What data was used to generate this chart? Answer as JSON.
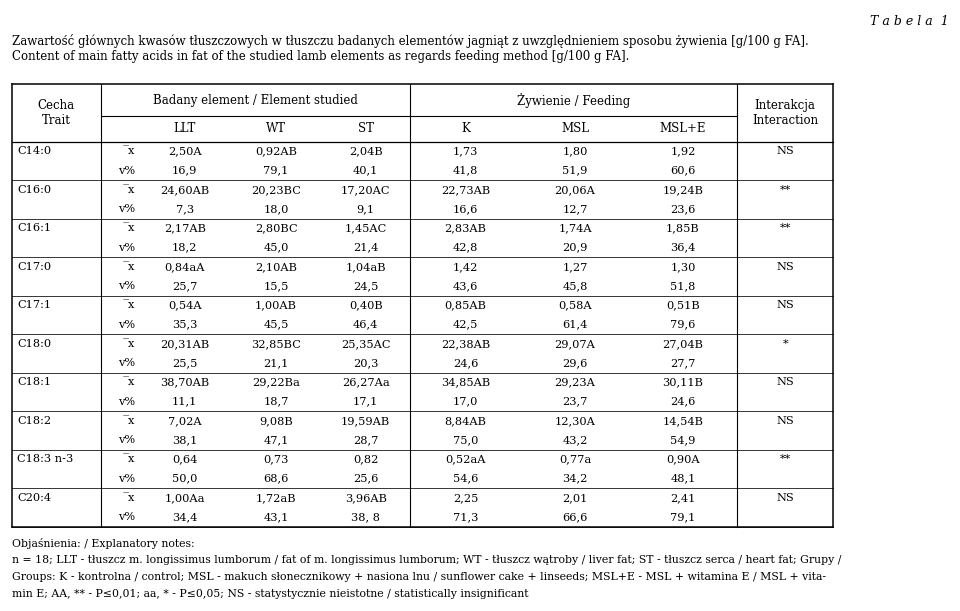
{
  "title_right": "T a b e l a  1",
  "title_line1": "Zawartość głównych kwasów tłuszczowych w tłuszczu badanych elementów jagniąt z uwzględnieniem sposobu żywienia [g/100 g FA].",
  "title_line2": "Content of main fatty acids in fat of the studied lamb elements as regards feeding method [g/100 g FA].",
  "footnote_line1": "Objaśnienia: / Explanatory notes:",
  "footnote_line2": "n = 18; LLT - tłuszcz m. longissimus lumborum / fat of m. longissimus lumborum; WT - tłuszcz wątroby / liver fat; ST - tłuszcz serca / heart fat; Grupy /",
  "footnote_line3": "Groups: K - kontrolna / control; MSL - makuch słonecznikowy + nasiona lnu / sunflower cake + linseeds; MSL+E - MSL + witamina E / MSL + vita-",
  "footnote_line4": "min E; AA, ** - P≤0,01; aa, * - P≤0,05; NS - statystycznie nieistotne / statistically insignificant",
  "rows": [
    [
      "C14:0",
      "̅x",
      "2,50A",
      "0,92AB",
      "2,04B",
      "1,73",
      "1,80",
      "1,92",
      "NS"
    ],
    [
      "",
      "v%",
      "16,9",
      "79,1",
      "40,1",
      "41,8",
      "51,9",
      "60,6",
      ""
    ],
    [
      "C16:0",
      "̅x",
      "24,60AB",
      "20,23BC",
      "17,20AC",
      "22,73AB",
      "20,06A",
      "19,24B",
      "**"
    ],
    [
      "",
      "v%",
      "7,3",
      "18,0",
      "9,1",
      "16,6",
      "12,7",
      "23,6",
      ""
    ],
    [
      "C16:1",
      "̅x",
      "2,17AB",
      "2,80BC",
      "1,45AC",
      "2,83AB",
      "1,74A",
      "1,85B",
      "**"
    ],
    [
      "",
      "v%",
      "18,2",
      "45,0",
      "21,4",
      "42,8",
      "20,9",
      "36,4",
      ""
    ],
    [
      "C17:0",
      "̅x",
      "0,84aA",
      "2,10AB",
      "1,04aB",
      "1,42",
      "1,27",
      "1,30",
      "NS"
    ],
    [
      "",
      "v%",
      "25,7",
      "15,5",
      "24,5",
      "43,6",
      "45,8",
      "51,8",
      ""
    ],
    [
      "C17:1",
      "̅x",
      "0,54A",
      "1,00AB",
      "0,40B",
      "0,85AB",
      "0,58A",
      "0,51B",
      "NS"
    ],
    [
      "",
      "v%",
      "35,3",
      "45,5",
      "46,4",
      "42,5",
      "61,4",
      "79,6",
      ""
    ],
    [
      "C18:0",
      "̅x",
      "20,31AB",
      "32,85BC",
      "25,35AC",
      "22,38AB",
      "29,07A",
      "27,04B",
      "*"
    ],
    [
      "",
      "v%",
      "25,5",
      "21,1",
      "20,3",
      "24,6",
      "29,6",
      "27,7",
      ""
    ],
    [
      "C18:1",
      "̅x",
      "38,70AB",
      "29,22Ba",
      "26,27Aa",
      "34,85AB",
      "29,23A",
      "30,11B",
      "NS"
    ],
    [
      "",
      "v%",
      "11,1",
      "18,7",
      "17,1",
      "17,0",
      "23,7",
      "24,6",
      ""
    ],
    [
      "C18:2",
      "̅x",
      "7,02A",
      "9,08B",
      "19,59AB",
      "8,84AB",
      "12,30A",
      "14,54B",
      "NS"
    ],
    [
      "",
      "v%",
      "38,1",
      "47,1",
      "28,7",
      "75,0",
      "43,2",
      "54,9",
      ""
    ],
    [
      "C18:3 n-3",
      "̅x",
      "0,64",
      "0,73",
      "0,82",
      "0,52aA",
      "0,77a",
      "0,90A",
      "**"
    ],
    [
      "",
      "v%",
      "50,0",
      "68,6",
      "25,6",
      "54,6",
      "34,2",
      "48,1",
      ""
    ],
    [
      "C20:4",
      "̅x",
      "1,00Aa",
      "1,72aB",
      "3,96AB",
      "2,25",
      "2,01",
      "2,41",
      "NS"
    ],
    [
      "",
      "v%",
      "34,4",
      "43,1",
      "38, 8",
      "71,3",
      "66,6",
      "79,1",
      ""
    ]
  ]
}
